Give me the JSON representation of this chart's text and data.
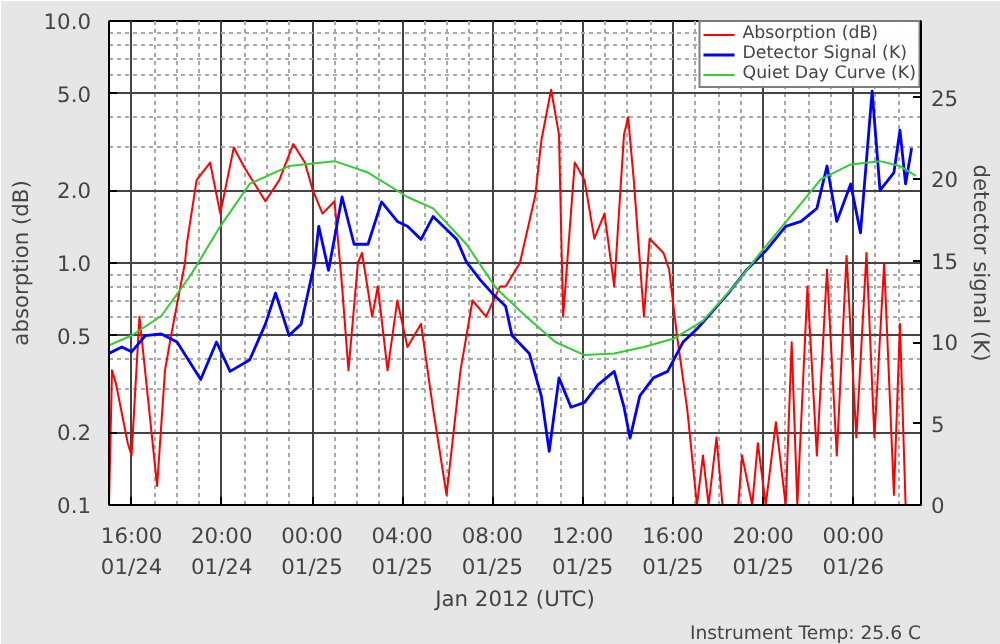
{
  "chart_data": {
    "type": "line",
    "xlabel": "Jan 2012 (UTC)",
    "ylabel": "absorption (dB)",
    "y2label": "detector signal (K)",
    "annotations": [
      "Instrument Temp: 25.6 C"
    ],
    "log": "y",
    "grid": true,
    "legend": "top right",
    "xlim": [
      "2012-01-24T15:00",
      "2012-01-26T03:00"
    ],
    "xticks": [
      {
        "value": "2012-01-24T16:00",
        "label": "16:00\n01/24"
      },
      {
        "value": "2012-01-24T20:00",
        "label": "20:00\n01/24"
      },
      {
        "value": "2012-01-25T00:00",
        "label": "00:00\n01/25"
      },
      {
        "value": "2012-01-25T04:00",
        "label": "04:00\n01/25"
      },
      {
        "value": "2012-01-25T08:00",
        "label": "08:00\n01/25"
      },
      {
        "value": "2012-01-25T12:00",
        "label": "12:00\n01/25"
      },
      {
        "value": "2012-01-25T16:00",
        "label": "16:00\n01/25"
      },
      {
        "value": "2012-01-25T20:00",
        "label": "20:00\n01/25"
      },
      {
        "value": "2012-01-26T00:00",
        "label": "00:00\n01/26"
      }
    ],
    "ylim": [
      0.1,
      10
    ],
    "yticks": [
      0.1,
      0.2,
      0.5,
      {
        "value": 1,
        "label": "1.0"
      },
      {
        "value": 2,
        "label": "2.0"
      },
      {
        "value": 5,
        "label": "5.0"
      },
      {
        "value": 10,
        "label": "10.0"
      }
    ],
    "y2lim": [
      0,
      29.7
    ],
    "y2ticks": [
      0,
      5,
      10,
      15,
      20,
      25
    ],
    "series": [
      {
        "name": "Absorption (dB)",
        "color": "#ff0000",
        "x": [
          "2012-01-24T15:00",
          "2012-01-24T15:08",
          "2012-01-24T15:18",
          "2012-01-24T15:50",
          "2012-01-24T16:00",
          "2012-01-24T16:21",
          "2012-01-24T17:08",
          "2012-01-24T17:29",
          "2012-01-24T17:45",
          "2012-01-24T18:22",
          "2012-01-24T18:27",
          "2012-01-24T18:53",
          "2012-01-24T19:29",
          "2012-01-24T19:56",
          "2012-01-24T20:32",
          "2012-01-24T20:59",
          "2012-01-24T21:56",
          "2012-01-24T22:33",
          "2012-01-24T23:10",
          "2012-01-24T23:41",
          "2012-01-25T00:02",
          "2012-01-25T00:28",
          "2012-01-25T01:00",
          "2012-01-25T01:20",
          "2012-01-25T01:37",
          "2012-01-25T02:02",
          "2012-01-25T02:13",
          "2012-01-25T02:40",
          "2012-01-25T02:55",
          "2012-01-25T03:21",
          "2012-01-25T03:47",
          "2012-01-25T04:14",
          "2012-01-25T04:50",
          "2012-01-25T05:22",
          "2012-01-25T05:58",
          "2012-01-25T06:35",
          "2012-01-25T07:07",
          "2012-01-25T07:43",
          "2012-01-25T08:20",
          "2012-01-25T08:35",
          "2012-01-25T09:13",
          "2012-01-25T09:54",
          "2012-01-25T10:10",
          "2012-01-25T10:36",
          "2012-01-25T10:57",
          "2012-01-25T11:08",
          "2012-01-25T11:39",
          "2012-01-25T12:05",
          "2012-01-25T12:31",
          "2012-01-25T12:58",
          "2012-01-25T13:24",
          "2012-01-25T13:50",
          "2012-01-25T14:01",
          "2012-01-25T14:16",
          "2012-01-25T14:43",
          "2012-01-25T14:58",
          "2012-01-25T15:35",
          "2012-01-25T15:50",
          "2012-01-25T16:11",
          "2012-01-25T16:38",
          "2012-01-25T17:04",
          "2012-01-25T17:20",
          "2012-01-25T17:35",
          "2012-01-25T17:56",
          "2012-01-25T18:12",
          "2012-01-25T18:54",
          "2012-01-25T19:04",
          "2012-01-25T19:31",
          "2012-01-25T19:46",
          "2012-01-25T20:07",
          "2012-01-25T20:34",
          "2012-01-25T21:00",
          "2012-01-25T21:16",
          "2012-01-25T21:31",
          "2012-01-25T21:58",
          "2012-01-25T22:23",
          "2012-01-25T22:50",
          "2012-01-25T23:16",
          "2012-01-25T23:42",
          "2012-01-26T00:08",
          "2012-01-26T00:35",
          "2012-01-26T00:56",
          "2012-01-26T01:22",
          "2012-01-26T01:48",
          "2012-01-26T02:04",
          "2012-01-26T02:19"
        ],
        "values": [
          0.1,
          0.36,
          0.32,
          0.18,
          0.16,
          0.6,
          0.12,
          0.36,
          0.5,
          1.0,
          1.2,
          2.2,
          2.6,
          1.6,
          3.0,
          2.5,
          1.8,
          2.2,
          3.1,
          2.6,
          2.0,
          1.6,
          1.8,
          0.8,
          0.36,
          1.0,
          1.1,
          0.6,
          0.8,
          0.36,
          0.7,
          0.45,
          0.56,
          0.25,
          0.11,
          0.36,
          0.7,
          0.6,
          0.8,
          0.8,
          1.0,
          1.9,
          3.2,
          5.2,
          3.4,
          0.6,
          2.6,
          2.2,
          1.26,
          1.6,
          0.8,
          3.4,
          4.0,
          2.2,
          0.6,
          1.26,
          1.1,
          0.94,
          0.5,
          0.25,
          0.1,
          0.16,
          0.1,
          0.19,
          0.1,
          0.1,
          0.16,
          0.1,
          0.18,
          0.1,
          0.22,
          0.1,
          0.47,
          0.1,
          0.8,
          0.16,
          0.94,
          0.16,
          1.07,
          0.19,
          1.1,
          0.19,
          1.0,
          0.11,
          0.56,
          0.1
        ]
      },
      {
        "name": "Detector Signal (K)",
        "color": "#0000ff",
        "axis": "y2",
        "x": [
          "2012-01-24T15:00",
          "2012-01-24T15:34",
          "2012-01-24T16:00",
          "2012-01-24T16:37",
          "2012-01-24T17:19",
          "2012-01-24T18:01",
          "2012-01-24T19:04",
          "2012-01-24T19:46",
          "2012-01-24T20:22",
          "2012-01-24T21:14",
          "2012-01-24T21:56",
          "2012-01-24T22:23",
          "2012-01-24T22:59",
          "2012-01-24T23:31",
          "2012-01-24T23:52",
          "2012-01-25T00:07",
          "2012-01-25T00:18",
          "2012-01-25T00:44",
          "2012-01-25T01:20",
          "2012-01-25T01:52",
          "2012-01-25T02:29",
          "2012-01-25T03:05",
          "2012-01-25T03:47",
          "2012-01-25T04:14",
          "2012-01-25T04:50",
          "2012-01-25T05:22",
          "2012-01-25T05:58",
          "2012-01-25T06:25",
          "2012-01-25T06:51",
          "2012-01-25T07:28",
          "2012-01-25T07:59",
          "2012-01-25T08:35",
          "2012-01-25T08:52",
          "2012-01-25T09:38",
          "2012-01-25T10:10",
          "2012-01-25T10:31",
          "2012-01-25T10:57",
          "2012-01-25T11:29",
          "2012-01-25T12:05",
          "2012-01-25T12:42",
          "2012-01-25T13:24",
          "2012-01-25T13:50",
          "2012-01-25T14:06",
          "2012-01-25T14:32",
          "2012-01-25T15:08",
          "2012-01-25T15:46",
          "2012-01-25T16:27",
          "2012-01-25T17:04",
          "2012-01-25T17:46",
          "2012-01-25T18:28",
          "2012-01-25T19:15",
          "2012-01-25T20:07",
          "2012-01-25T21:00",
          "2012-01-25T21:41",
          "2012-01-25T22:23",
          "2012-01-25T22:50",
          "2012-01-25T23:16",
          "2012-01-25T23:53",
          "2012-01-26T00:19",
          "2012-01-26T00:50",
          "2012-01-26T01:11",
          "2012-01-26T01:48",
          "2012-01-26T02:04",
          "2012-01-26T02:19",
          "2012-01-26T02:35"
        ],
        "values": [
          9.3,
          9.7,
          9.4,
          10.4,
          10.5,
          10.0,
          7.7,
          10.0,
          8.2,
          8.9,
          11.1,
          13.0,
          10.4,
          11.1,
          13.3,
          14.9,
          17.1,
          14.4,
          18.9,
          16.0,
          16.0,
          18.6,
          17.4,
          17.1,
          16.3,
          17.7,
          16.9,
          16.3,
          14.9,
          13.8,
          13.0,
          12.2,
          10.4,
          9.3,
          6.7,
          3.3,
          7.8,
          6.0,
          6.3,
          7.4,
          8.2,
          6.0,
          4.1,
          6.7,
          7.8,
          8.2,
          10.0,
          10.8,
          11.9,
          13.0,
          14.4,
          15.6,
          17.1,
          17.4,
          18.2,
          20.8,
          17.4,
          19.7,
          16.7,
          25.4,
          19.3,
          20.4,
          23.0,
          19.7,
          21.9
        ]
      },
      {
        "name": "Quiet Day Curve (K)",
        "color": "#33cc33",
        "axis": "y2",
        "x": [
          "2012-01-24T15:00",
          "2012-01-24T16:00",
          "2012-01-24T17:19",
          "2012-01-24T18:37",
          "2012-01-24T19:56",
          "2012-01-24T21:14",
          "2012-01-24T22:59",
          "2012-01-25T01:00",
          "2012-01-25T02:29",
          "2012-01-25T04:14",
          "2012-01-25T05:22",
          "2012-01-25T06:51",
          "2012-01-25T08:10",
          "2012-01-25T09:28",
          "2012-01-25T10:47",
          "2012-01-25T12:05",
          "2012-01-25T13:24",
          "2012-01-25T14:43",
          "2012-01-25T16:01",
          "2012-01-25T17:20",
          "2012-01-25T18:38",
          "2012-01-25T19:57",
          "2012-01-25T21:16",
          "2012-01-25T22:34",
          "2012-01-25T23:53",
          "2012-01-26T01:11",
          "2012-01-26T02:04",
          "2012-01-26T02:46"
        ],
        "values": [
          9.8,
          10.4,
          11.6,
          14.1,
          17.1,
          19.7,
          20.8,
          21.1,
          20.4,
          18.9,
          18.2,
          16.0,
          13.3,
          11.6,
          10.0,
          9.2,
          9.3,
          9.7,
          10.2,
          11.3,
          13.3,
          15.6,
          17.8,
          20.0,
          20.9,
          21.1,
          20.8,
          20.2
        ]
      }
    ]
  }
}
